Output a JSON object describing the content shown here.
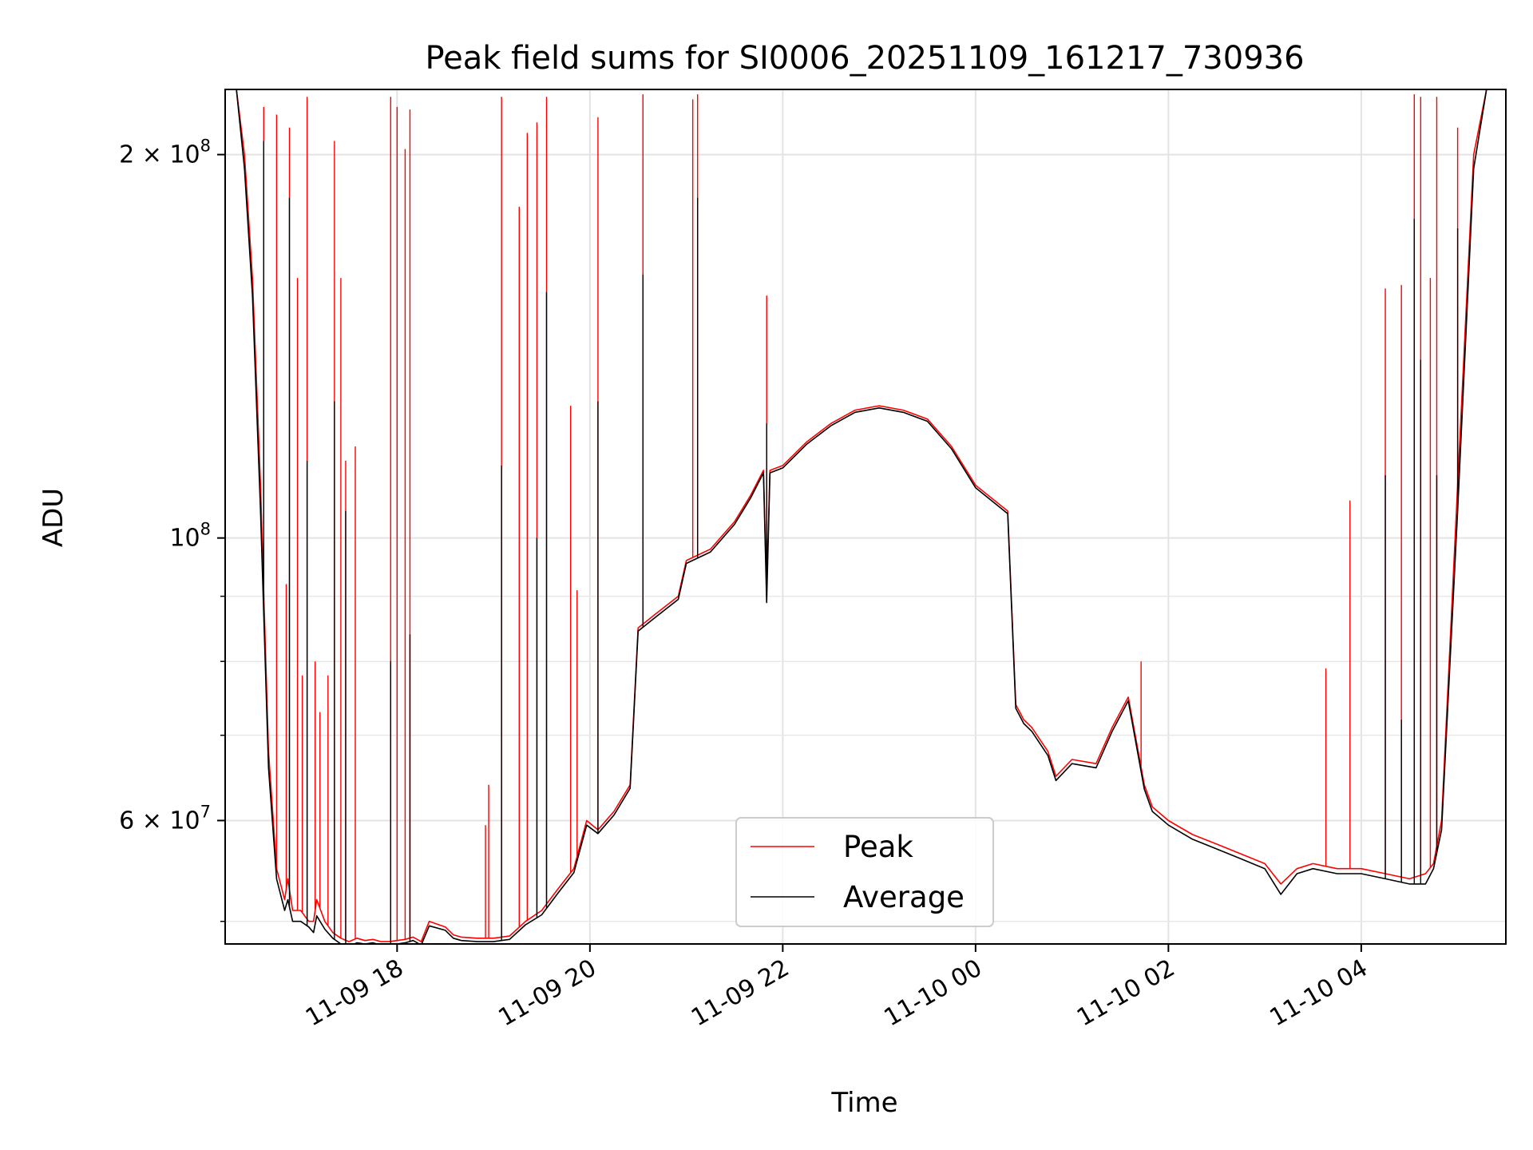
{
  "chart_data": {
    "type": "line",
    "title": "Peak field sums for SI0006_20251109_161217_730936",
    "xlabel": "Time",
    "ylabel": "ADU",
    "xscale": "time",
    "yscale": "log",
    "xlim": [
      "2025-11-09 16:13",
      "2025-11-10 05:30"
    ],
    "ylim": [
      48000000,
      225000000
    ],
    "grid": true,
    "legend": {
      "location": "bottom-center",
      "entries": [
        "Peak",
        "Average"
      ]
    },
    "x_ticks": [
      {
        "value": "2025-11-09 18:00",
        "label": "11-09 18"
      },
      {
        "value": "2025-11-09 20:00",
        "label": "11-09 20"
      },
      {
        "value": "2025-11-09 22:00",
        "label": "11-09 22"
      },
      {
        "value": "2025-11-10 00:00",
        "label": "11-10 00"
      },
      {
        "value": "2025-11-10 02:00",
        "label": "11-10 02"
      },
      {
        "value": "2025-11-10 04:00",
        "label": "11-10 04"
      }
    ],
    "y_ticks": [
      {
        "value": 60000000,
        "label": "6 × 10⁷",
        "mantissa": "6",
        "exp": "7"
      },
      {
        "value": 100000000,
        "label": "10⁸",
        "mantissa": "",
        "exp": "8"
      },
      {
        "value": 200000000,
        "label": "2 × 10⁸",
        "mantissa": "2",
        "exp": "8"
      }
    ],
    "y_minor_ticks": [
      50000000,
      70000000,
      80000000,
      90000000
    ],
    "series": [
      {
        "name": "Peak",
        "color": "#ff0000",
        "x": [
          "2025-11-09 16:20",
          "2025-11-09 16:25",
          "2025-11-09 16:30",
          "2025-11-09 16:35",
          "2025-11-09 16:40",
          "2025-11-09 16:45",
          "2025-11-09 16:50",
          "2025-11-09 16:52",
          "2025-11-09 16:55",
          "2025-11-09 17:00",
          "2025-11-09 17:05",
          "2025-11-09 17:08",
          "2025-11-09 17:10",
          "2025-11-09 17:15",
          "2025-11-09 17:20",
          "2025-11-09 17:25",
          "2025-11-09 17:30",
          "2025-11-09 17:35",
          "2025-11-09 17:40",
          "2025-11-09 17:45",
          "2025-11-09 17:50",
          "2025-11-09 17:55",
          "2025-11-09 18:00",
          "2025-11-09 18:05",
          "2025-11-09 18:10",
          "2025-11-09 18:15",
          "2025-11-09 18:20",
          "2025-11-09 18:30",
          "2025-11-09 18:35",
          "2025-11-09 18:40",
          "2025-11-09 18:50",
          "2025-11-09 19:00",
          "2025-11-09 19:10",
          "2025-11-09 19:20",
          "2025-11-09 19:30",
          "2025-11-09 19:40",
          "2025-11-09 19:50",
          "2025-11-09 19:58",
          "2025-11-09 20:05",
          "2025-11-09 20:15",
          "2025-11-09 20:25",
          "2025-11-09 20:30",
          "2025-11-09 20:40",
          "2025-11-09 20:55",
          "2025-11-09 21:00",
          "2025-11-09 21:15",
          "2025-11-09 21:30",
          "2025-11-09 21:40",
          "2025-11-09 21:48",
          "2025-11-09 21:50",
          "2025-11-09 21:52",
          "2025-11-09 22:00",
          "2025-11-09 22:15",
          "2025-11-09 22:30",
          "2025-11-09 22:45",
          "2025-11-09 23:00",
          "2025-11-09 23:15",
          "2025-11-09 23:30",
          "2025-11-09 23:45",
          "2025-11-10 00:00",
          "2025-11-10 00:20",
          "2025-11-10 00:25",
          "2025-11-10 00:30",
          "2025-11-10 00:35",
          "2025-11-10 00:45",
          "2025-11-10 00:50",
          "2025-11-10 01:00",
          "2025-11-10 01:15",
          "2025-11-10 01:25",
          "2025-11-10 01:35",
          "2025-11-10 01:45",
          "2025-11-10 01:50",
          "2025-11-10 02:00",
          "2025-11-10 02:15",
          "2025-11-10 02:30",
          "2025-11-10 02:45",
          "2025-11-10 03:00",
          "2025-11-10 03:10",
          "2025-11-10 03:20",
          "2025-11-10 03:30",
          "2025-11-10 03:45",
          "2025-11-10 04:00",
          "2025-11-10 04:15",
          "2025-11-10 04:30",
          "2025-11-10 04:40",
          "2025-11-10 04:45",
          "2025-11-10 04:50",
          "2025-11-10 05:00",
          "2025-11-10 05:10",
          "2025-11-10 05:18",
          "2025-11-10 05:25"
        ],
        "y": [
          225000000,
          200000000,
          160000000,
          110000000,
          68000000,
          55000000,
          52000000,
          54000000,
          51000000,
          51000000,
          50000000,
          50000000,
          52000000,
          50000000,
          49000000,
          48500000,
          48200000,
          48500000,
          48300000,
          48400000,
          48200000,
          48200000,
          48300000,
          48400000,
          48600000,
          48200000,
          50000000,
          49500000,
          48800000,
          48600000,
          48500000,
          48500000,
          48700000,
          50000000,
          51000000,
          53000000,
          55000000,
          60000000,
          59000000,
          61000000,
          64000000,
          85000000,
          87000000,
          90000000,
          96000000,
          98000000,
          103000000,
          108000000,
          113000000,
          91000000,
          113000000,
          114000000,
          119000000,
          123000000,
          126000000,
          127000000,
          126000000,
          124000000,
          118000000,
          110000000,
          105000000,
          74000000,
          72000000,
          71000000,
          68000000,
          65000000,
          67000000,
          66500000,
          71000000,
          75000000,
          64000000,
          61500000,
          60000000,
          58500000,
          57500000,
          56500000,
          55500000,
          53500000,
          55000000,
          55500000,
          55000000,
          55000000,
          54500000,
          54000000,
          54500000,
          55500000,
          60000000,
          110000000,
          200000000,
          225000000,
          225000000
        ],
        "spikes": [
          {
            "x": "2025-11-09 16:37",
            "y": 218000000
          },
          {
            "x": "2025-11-09 16:45",
            "y": 215000000
          },
          {
            "x": "2025-11-09 16:51",
            "y": 92000000
          },
          {
            "x": "2025-11-09 16:53",
            "y": 210000000
          },
          {
            "x": "2025-11-09 16:58",
            "y": 160000000
          },
          {
            "x": "2025-11-09 17:01",
            "y": 78000000
          },
          {
            "x": "2025-11-09 17:04",
            "y": 222000000
          },
          {
            "x": "2025-11-09 17:09",
            "y": 80000000
          },
          {
            "x": "2025-11-09 17:12",
            "y": 73000000
          },
          {
            "x": "2025-11-09 17:17",
            "y": 78000000
          },
          {
            "x": "2025-11-09 17:21",
            "y": 205000000
          },
          {
            "x": "2025-11-09 17:25",
            "y": 160000000
          },
          {
            "x": "2025-11-09 17:28",
            "y": 115000000
          },
          {
            "x": "2025-11-09 17:34",
            "y": 118000000
          },
          {
            "x": "2025-11-09 17:56",
            "y": 222000000
          },
          {
            "x": "2025-11-09 18:00",
            "y": 218000000
          },
          {
            "x": "2025-11-09 18:05",
            "y": 202000000
          },
          {
            "x": "2025-11-09 18:08",
            "y": 217000000
          },
          {
            "x": "2025-11-09 18:55",
            "y": 59500000
          },
          {
            "x": "2025-11-09 18:57",
            "y": 64000000
          },
          {
            "x": "2025-11-09 19:05",
            "y": 222000000
          },
          {
            "x": "2025-11-09 19:16",
            "y": 182000000
          },
          {
            "x": "2025-11-09 19:21",
            "y": 208000000
          },
          {
            "x": "2025-11-09 19:27",
            "y": 212000000
          },
          {
            "x": "2025-11-09 19:33",
            "y": 222000000
          },
          {
            "x": "2025-11-09 19:48",
            "y": 127000000
          },
          {
            "x": "2025-11-09 19:52",
            "y": 91000000
          },
          {
            "x": "2025-11-09 20:05",
            "y": 214000000
          },
          {
            "x": "2025-11-09 20:33",
            "y": 223000000
          },
          {
            "x": "2025-11-09 21:04",
            "y": 221000000
          },
          {
            "x": "2025-11-09 21:07",
            "y": 223000000
          },
          {
            "x": "2025-11-09 21:50",
            "y": 155000000
          },
          {
            "x": "2025-11-10 01:43",
            "y": 80000000
          },
          {
            "x": "2025-11-10 03:38",
            "y": 79000000
          },
          {
            "x": "2025-11-10 03:53",
            "y": 107000000
          },
          {
            "x": "2025-11-10 04:15",
            "y": 157000000
          },
          {
            "x": "2025-11-10 04:25",
            "y": 158000000
          },
          {
            "x": "2025-11-10 04:33",
            "y": 223000000
          },
          {
            "x": "2025-11-10 04:37",
            "y": 222000000
          },
          {
            "x": "2025-11-10 04:43",
            "y": 160000000
          },
          {
            "x": "2025-11-10 04:47",
            "y": 222000000
          },
          {
            "x": "2025-11-10 05:00",
            "y": 210000000
          }
        ]
      },
      {
        "name": "Average",
        "color": "#000000",
        "x": [
          "2025-11-09 16:20",
          "2025-11-09 16:25",
          "2025-11-09 16:30",
          "2025-11-09 16:35",
          "2025-11-09 16:40",
          "2025-11-09 16:45",
          "2025-11-09 16:50",
          "2025-11-09 16:52",
          "2025-11-09 16:55",
          "2025-11-09 17:00",
          "2025-11-09 17:05",
          "2025-11-09 17:08",
          "2025-11-09 17:10",
          "2025-11-09 17:15",
          "2025-11-09 17:20",
          "2025-11-09 17:25",
          "2025-11-09 17:30",
          "2025-11-09 17:35",
          "2025-11-09 17:40",
          "2025-11-09 17:45",
          "2025-11-09 17:50",
          "2025-11-09 17:55",
          "2025-11-09 18:00",
          "2025-11-09 18:05",
          "2025-11-09 18:10",
          "2025-11-09 18:15",
          "2025-11-09 18:20",
          "2025-11-09 18:30",
          "2025-11-09 18:35",
          "2025-11-09 18:40",
          "2025-11-09 18:50",
          "2025-11-09 19:00",
          "2025-11-09 19:10",
          "2025-11-09 19:20",
          "2025-11-09 19:30",
          "2025-11-09 19:40",
          "2025-11-09 19:50",
          "2025-11-09 19:58",
          "2025-11-09 20:05",
          "2025-11-09 20:15",
          "2025-11-09 20:25",
          "2025-11-09 20:30",
          "2025-11-09 20:40",
          "2025-11-09 20:55",
          "2025-11-09 21:00",
          "2025-11-09 21:15",
          "2025-11-09 21:30",
          "2025-11-09 21:40",
          "2025-11-09 21:48",
          "2025-11-09 21:50",
          "2025-11-09 21:52",
          "2025-11-09 22:00",
          "2025-11-09 22:15",
          "2025-11-09 22:30",
          "2025-11-09 22:45",
          "2025-11-09 23:00",
          "2025-11-09 23:15",
          "2025-11-09 23:30",
          "2025-11-09 23:45",
          "2025-11-10 00:00",
          "2025-11-10 00:20",
          "2025-11-10 00:25",
          "2025-11-10 00:30",
          "2025-11-10 00:35",
          "2025-11-10 00:45",
          "2025-11-10 00:50",
          "2025-11-10 01:00",
          "2025-11-10 01:15",
          "2025-11-10 01:25",
          "2025-11-10 01:35",
          "2025-11-10 01:45",
          "2025-11-10 01:50",
          "2025-11-10 02:00",
          "2025-11-10 02:15",
          "2025-11-10 02:30",
          "2025-11-10 02:45",
          "2025-11-10 03:00",
          "2025-11-10 03:10",
          "2025-11-10 03:20",
          "2025-11-10 03:30",
          "2025-11-10 03:45",
          "2025-11-10 04:00",
          "2025-11-10 04:15",
          "2025-11-10 04:30",
          "2025-11-10 04:40",
          "2025-11-10 04:45",
          "2025-11-10 04:50",
          "2025-11-10 05:00",
          "2025-11-10 05:10",
          "2025-11-10 05:18",
          "2025-11-10 05:25"
        ],
        "y": [
          225000000,
          195000000,
          155000000,
          105000000,
          66000000,
          54000000,
          51000000,
          52000000,
          50000000,
          50000000,
          49500000,
          49000000,
          50500000,
          49300000,
          48500000,
          48000000,
          47800000,
          48100000,
          48000000,
          48100000,
          47900000,
          47900000,
          48000000,
          48100000,
          48300000,
          47900000,
          49600000,
          49200000,
          48500000,
          48300000,
          48200000,
          48200000,
          48400000,
          49700000,
          50600000,
          52600000,
          54600000,
          59500000,
          58600000,
          60600000,
          63600000,
          84500000,
          86500000,
          89500000,
          95500000,
          97500000,
          102500000,
          107500000,
          112500000,
          89000000,
          112500000,
          113500000,
          118500000,
          122500000,
          125500000,
          126500000,
          125500000,
          123500000,
          117500000,
          109500000,
          104500000,
          73500000,
          71500000,
          70500000,
          67500000,
          64500000,
          66500000,
          66000000,
          70500000,
          74500000,
          63500000,
          61000000,
          59500000,
          58000000,
          57000000,
          56000000,
          55000000,
          52500000,
          54500000,
          55000000,
          54500000,
          54500000,
          54000000,
          53500000,
          53500000,
          55000000,
          59000000,
          105000000,
          195000000,
          225000000,
          225000000
        ],
        "spikes": [
          {
            "x": "2025-11-09 16:37",
            "y": 205000000
          },
          {
            "x": "2025-11-09 16:53",
            "y": 185000000
          },
          {
            "x": "2025-11-09 17:04",
            "y": 115000000
          },
          {
            "x": "2025-11-09 17:21",
            "y": 128000000
          },
          {
            "x": "2025-11-09 17:28",
            "y": 105000000
          },
          {
            "x": "2025-11-09 17:56",
            "y": 80000000
          },
          {
            "x": "2025-11-09 18:08",
            "y": 84000000
          },
          {
            "x": "2025-11-09 19:05",
            "y": 114000000
          },
          {
            "x": "2025-11-09 19:27",
            "y": 100000000
          },
          {
            "x": "2025-11-09 19:33",
            "y": 156000000
          },
          {
            "x": "2025-11-09 20:05",
            "y": 128000000
          },
          {
            "x": "2025-11-09 20:33",
            "y": 161000000
          },
          {
            "x": "2025-11-09 21:07",
            "y": 185000000
          },
          {
            "x": "2025-11-09 21:50",
            "y": 123000000
          },
          {
            "x": "2025-11-10 04:15",
            "y": 112000000
          },
          {
            "x": "2025-11-10 04:25",
            "y": 72000000
          },
          {
            "x": "2025-11-10 04:33",
            "y": 178000000
          },
          {
            "x": "2025-11-10 04:37",
            "y": 138000000
          },
          {
            "x": "2025-11-10 04:47",
            "y": 112000000
          },
          {
            "x": "2025-11-10 05:00",
            "y": 175000000
          }
        ]
      }
    ]
  }
}
